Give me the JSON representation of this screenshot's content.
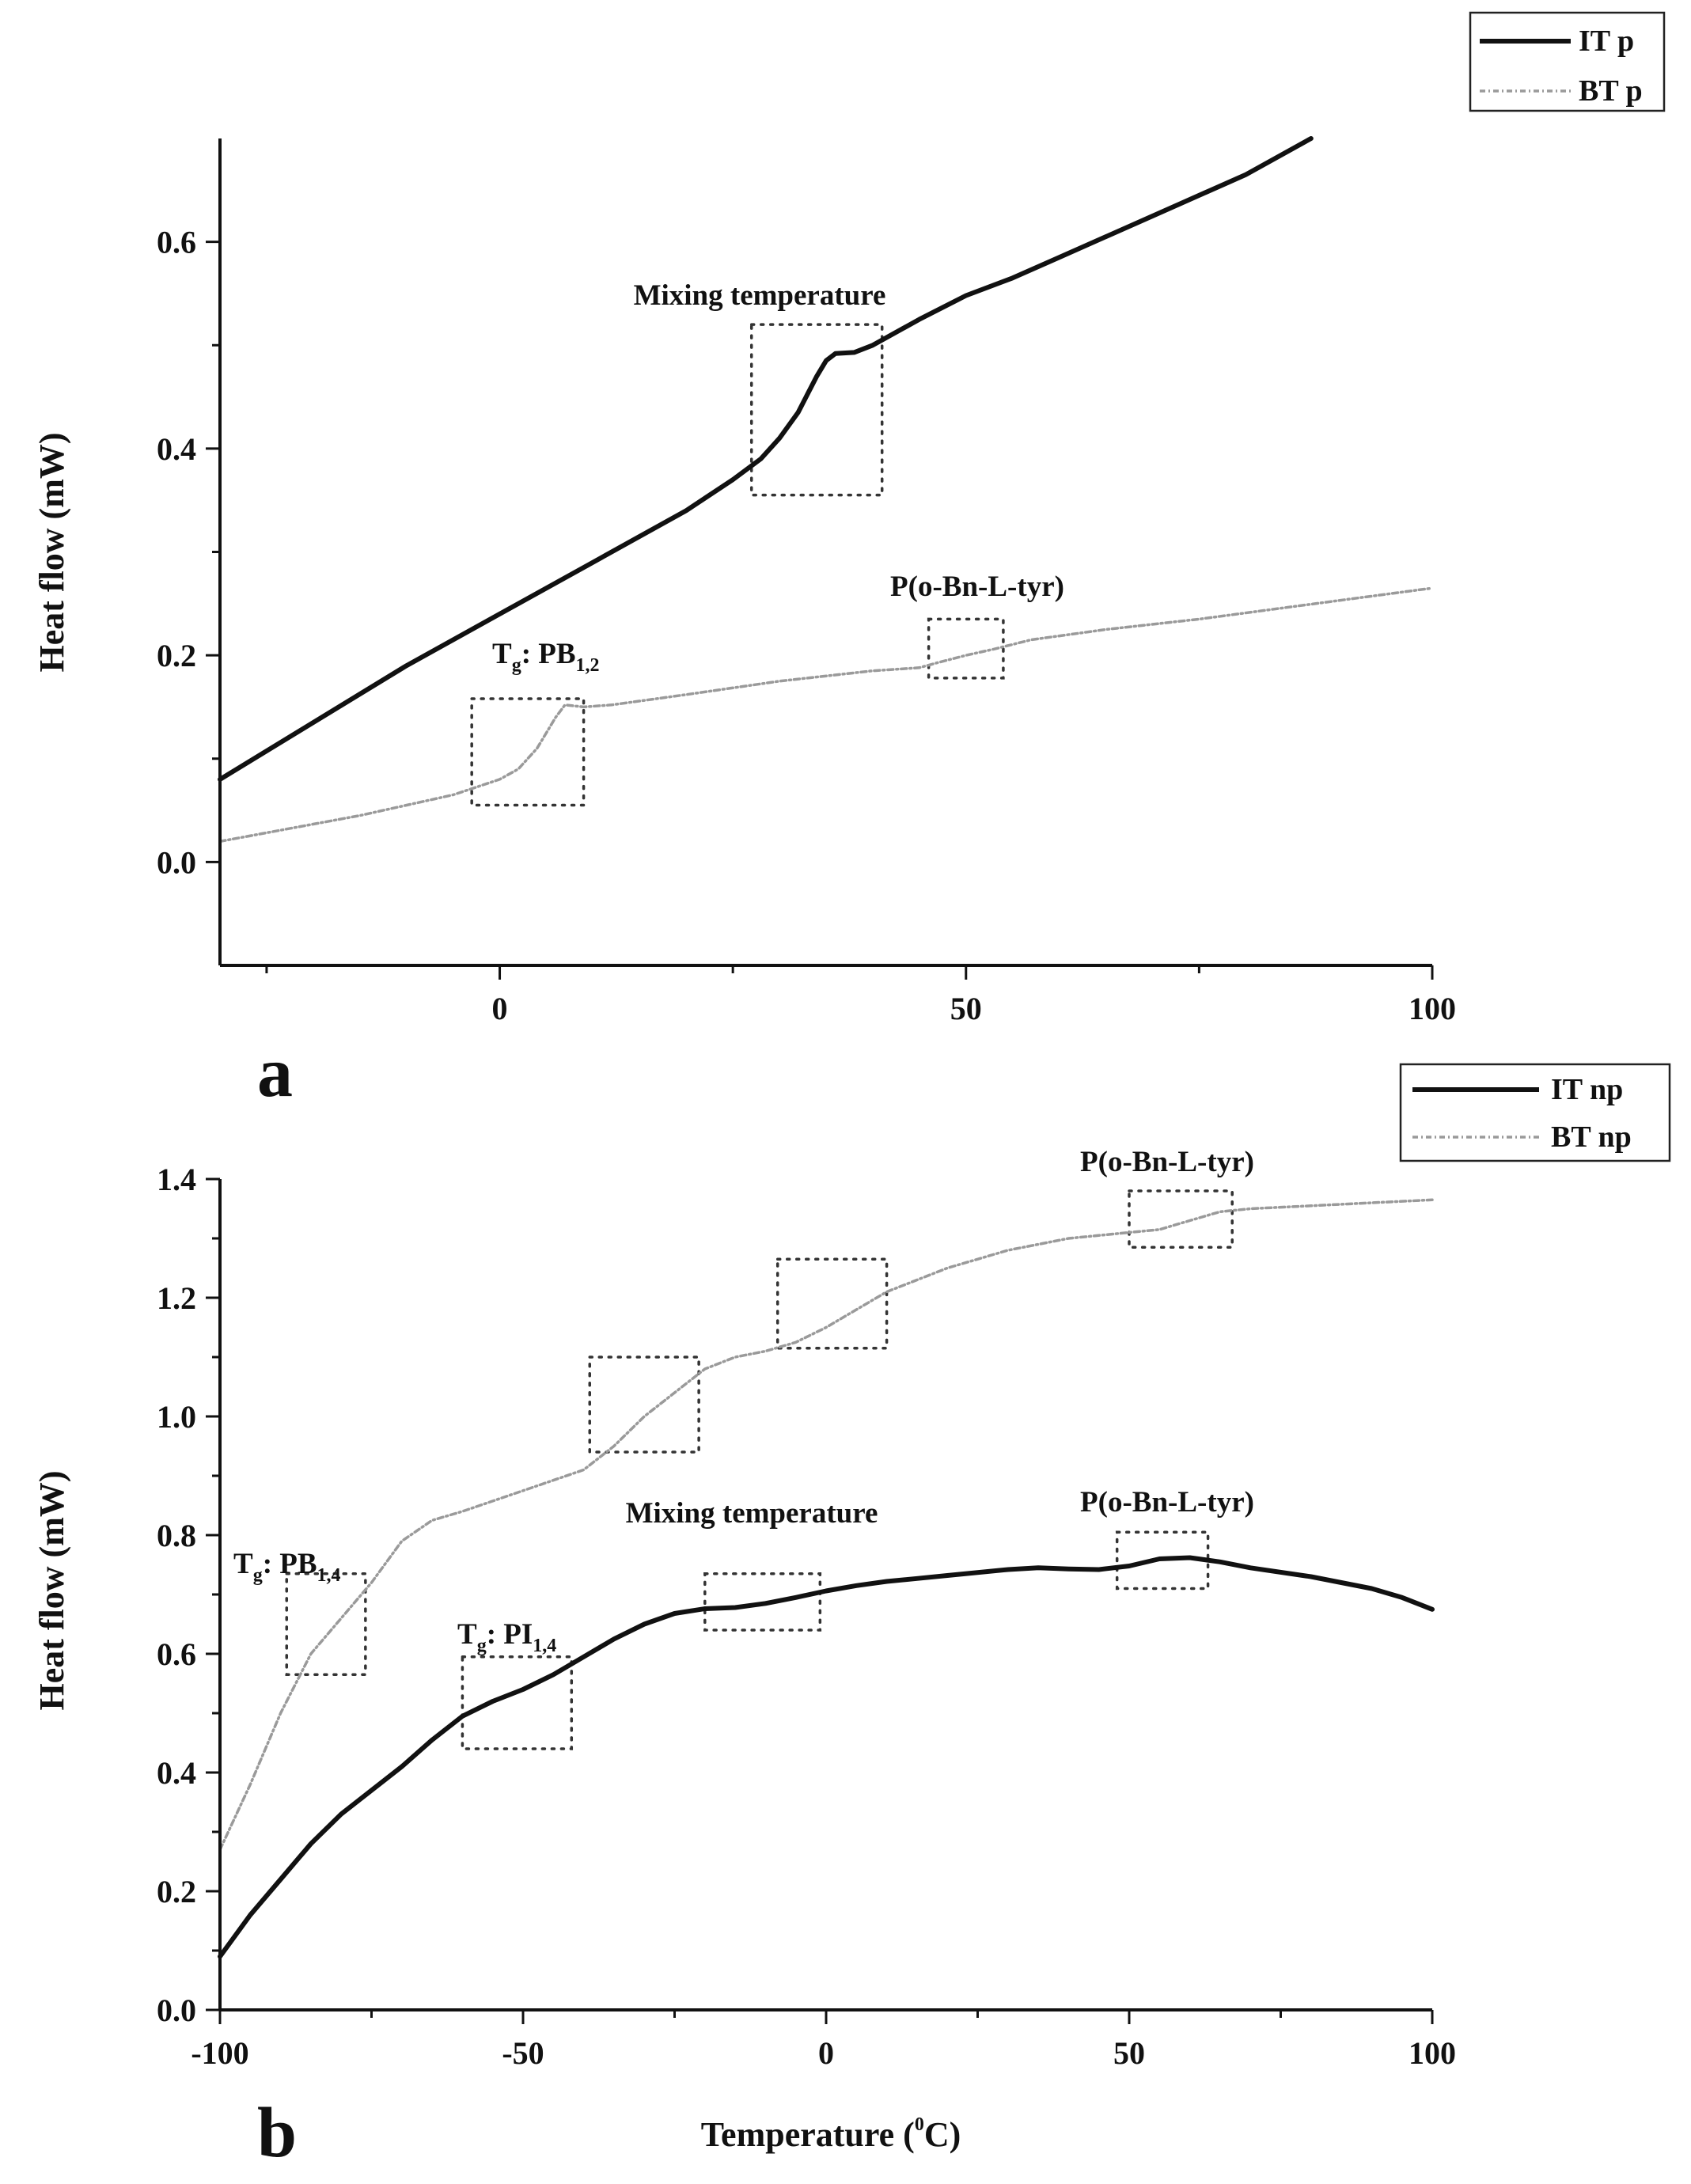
{
  "chart_data": [
    {
      "type": "line",
      "panel": "a",
      "xlabel": "",
      "ylabel": "Heat flow (mW)",
      "xlim": [
        -30,
        100
      ],
      "ylim": [
        -0.1,
        0.7
      ],
      "x_ticks": [
        0,
        50,
        100
      ],
      "y_ticks": [
        0.0,
        0.2,
        0.4,
        0.6
      ],
      "x_tick_labels": [
        "0",
        "50",
        "100"
      ],
      "y_tick_labels": [
        "0.0",
        "0.2",
        "0.4",
        "0.6"
      ],
      "grid": false,
      "legend_position": "top-right",
      "series": [
        {
          "name": "IT p",
          "style": "solid",
          "color": "#111111",
          "points": [
            [
              -30,
              0.08
            ],
            [
              -10,
              0.19
            ],
            [
              0,
              0.24
            ],
            [
              10,
              0.29
            ],
            [
              20,
              0.34
            ],
            [
              25,
              0.37
            ],
            [
              28,
              0.39
            ],
            [
              30,
              0.41
            ],
            [
              32,
              0.435
            ],
            [
              34,
              0.47
            ],
            [
              35,
              0.485
            ],
            [
              36,
              0.492
            ],
            [
              38,
              0.493
            ],
            [
              40,
              0.5
            ],
            [
              45,
              0.525
            ],
            [
              50,
              0.548
            ],
            [
              55,
              0.565
            ],
            [
              60,
              0.585
            ],
            [
              70,
              0.625
            ],
            [
              80,
              0.665
            ],
            [
              87,
              0.7
            ]
          ]
        },
        {
          "name": "BT p",
          "style": "dashed",
          "color": "#9a9a9a",
          "points": [
            [
              -30,
              0.02
            ],
            [
              -15,
              0.045
            ],
            [
              -5,
              0.065
            ],
            [
              0,
              0.08
            ],
            [
              2,
              0.09
            ],
            [
              4,
              0.11
            ],
            [
              6,
              0.14
            ],
            [
              7,
              0.152
            ],
            [
              9,
              0.15
            ],
            [
              12,
              0.152
            ],
            [
              20,
              0.162
            ],
            [
              30,
              0.175
            ],
            [
              40,
              0.185
            ],
            [
              45,
              0.188
            ],
            [
              47,
              0.193
            ],
            [
              50,
              0.2
            ],
            [
              53,
              0.206
            ],
            [
              57,
              0.215
            ],
            [
              65,
              0.225
            ],
            [
              75,
              0.235
            ],
            [
              85,
              0.247
            ],
            [
              100,
              0.265
            ]
          ]
        }
      ],
      "annotations": [
        {
          "id": "mixing",
          "text": "Mixing temperature",
          "box": {
            "x": [
              27,
              41
            ],
            "y": [
              0.355,
              0.52
            ]
          }
        },
        {
          "id": "tyr",
          "text": "P(o-Bn-L-tyr)",
          "box": {
            "x": [
              46,
              54
            ],
            "y": [
              0.178,
              0.235
            ]
          }
        },
        {
          "id": "tg-pb12",
          "text": "T",
          "sub": "g",
          "text2": ": PB",
          "sub2": "1,2",
          "box": {
            "x": [
              -3,
              9
            ],
            "y": [
              0.055,
              0.158
            ]
          }
        }
      ]
    },
    {
      "type": "line",
      "panel": "b",
      "xlabel": "Temperature (",
      "xlabel_sup": "0",
      "xlabel_tail": "C)",
      "ylabel": "Heat flow (mW)",
      "xlim": [
        -100,
        100
      ],
      "ylim": [
        0.0,
        1.4
      ],
      "x_ticks": [
        -100,
        -50,
        0,
        50,
        100
      ],
      "y_ticks": [
        0.0,
        0.2,
        0.4,
        0.6,
        0.8,
        1.0,
        1.2,
        1.4
      ],
      "x_tick_labels": [
        "-100",
        "-50",
        "0",
        "50",
        "100"
      ],
      "y_tick_labels": [
        "0.0",
        "0.2",
        "0.4",
        "0.6",
        "0.8",
        "1.0",
        "1.2",
        "1.4"
      ],
      "grid": false,
      "legend_position": "top-right",
      "series": [
        {
          "name": "IT np",
          "style": "solid",
          "color": "#111111",
          "points": [
            [
              -100,
              0.09
            ],
            [
              -95,
              0.16
            ],
            [
              -90,
              0.22
            ],
            [
              -85,
              0.28
            ],
            [
              -80,
              0.33
            ],
            [
              -75,
              0.37
            ],
            [
              -70,
              0.41
            ],
            [
              -65,
              0.455
            ],
            [
              -60,
              0.495
            ],
            [
              -55,
              0.52
            ],
            [
              -50,
              0.54
            ],
            [
              -45,
              0.565
            ],
            [
              -40,
              0.595
            ],
            [
              -35,
              0.625
            ],
            [
              -30,
              0.65
            ],
            [
              -25,
              0.668
            ],
            [
              -20,
              0.676
            ],
            [
              -15,
              0.678
            ],
            [
              -10,
              0.685
            ],
            [
              -5,
              0.695
            ],
            [
              0,
              0.706
            ],
            [
              5,
              0.715
            ],
            [
              10,
              0.722
            ],
            [
              15,
              0.727
            ],
            [
              20,
              0.732
            ],
            [
              30,
              0.742
            ],
            [
              35,
              0.745
            ],
            [
              40,
              0.743
            ],
            [
              45,
              0.742
            ],
            [
              50,
              0.748
            ],
            [
              55,
              0.76
            ],
            [
              60,
              0.762
            ],
            [
              65,
              0.755
            ],
            [
              70,
              0.745
            ],
            [
              80,
              0.73
            ],
            [
              90,
              0.71
            ],
            [
              95,
              0.695
            ],
            [
              100,
              0.675
            ]
          ]
        },
        {
          "name": "BT np",
          "style": "dashed",
          "color": "#9a9a9a",
          "points": [
            [
              -100,
              0.27
            ],
            [
              -95,
              0.38
            ],
            [
              -90,
              0.5
            ],
            [
              -85,
              0.6
            ],
            [
              -80,
              0.66
            ],
            [
              -75,
              0.72
            ],
            [
              -70,
              0.79
            ],
            [
              -65,
              0.825
            ],
            [
              -60,
              0.84
            ],
            [
              -50,
              0.875
            ],
            [
              -40,
              0.91
            ],
            [
              -35,
              0.95
            ],
            [
              -30,
              1.0
            ],
            [
              -25,
              1.04
            ],
            [
              -20,
              1.08
            ],
            [
              -15,
              1.1
            ],
            [
              -10,
              1.11
            ],
            [
              -5,
              1.125
            ],
            [
              0,
              1.15
            ],
            [
              5,
              1.18
            ],
            [
              10,
              1.21
            ],
            [
              15,
              1.23
            ],
            [
              20,
              1.25
            ],
            [
              30,
              1.28
            ],
            [
              40,
              1.3
            ],
            [
              50,
              1.31
            ],
            [
              55,
              1.315
            ],
            [
              60,
              1.33
            ],
            [
              65,
              1.345
            ],
            [
              70,
              1.35
            ],
            [
              80,
              1.355
            ],
            [
              90,
              1.36
            ],
            [
              100,
              1.365
            ]
          ]
        }
      ],
      "annotations": [
        {
          "id": "tyr-upper",
          "text": "P(o-Bn-L-tyr)",
          "box": {
            "x": [
              50,
              67
            ],
            "y": [
              1.285,
              1.38
            ]
          }
        },
        {
          "id": "mixing",
          "text": "Mixing temperature",
          "box": {
            "x": [
              -20,
              -1
            ],
            "y": [
              0.64,
              0.735
            ]
          }
        },
        {
          "id": "tyr-lower",
          "text": "P(o-Bn-L-tyr)",
          "box": {
            "x": [
              48,
              63
            ],
            "y": [
              0.71,
              0.805
            ]
          }
        },
        {
          "id": "tg-pb14",
          "text": "T",
          "sub": "g",
          "text2": ": PB",
          "sub2": "1,4",
          "box": {
            "x": [
              -89,
              -76
            ],
            "y": [
              0.565,
              0.735
            ]
          }
        },
        {
          "id": "tg-pi14",
          "text": "T",
          "sub": "g",
          "text2": ": PI",
          "sub2": "1,4",
          "box": {
            "x": [
              -60,
              -42
            ],
            "y": [
              0.44,
              0.595
            ]
          }
        },
        {
          "id": "box-1",
          "text": "",
          "box": {
            "x": [
              -39,
              -21
            ],
            "y": [
              0.94,
              1.1
            ]
          }
        },
        {
          "id": "box-2",
          "text": "",
          "box": {
            "x": [
              -8,
              10
            ],
            "y": [
              1.115,
              1.265
            ]
          }
        }
      ]
    }
  ]
}
